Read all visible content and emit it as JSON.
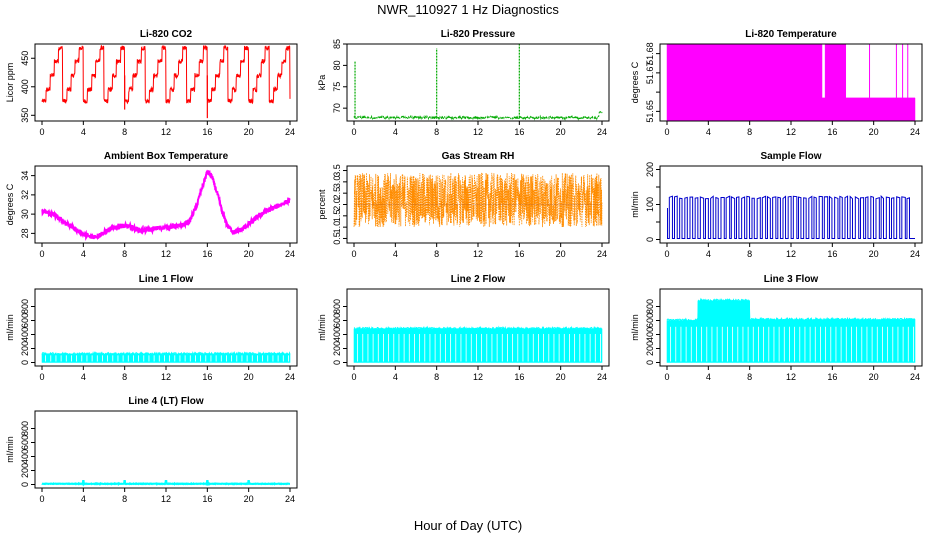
{
  "figure": {
    "title": "NWR_110927 1 Hz Diagnostics",
    "xlabel": "Hour of Day (UTC)"
  },
  "chart_data": [
    {
      "id": "co2",
      "type": "line",
      "title": "Li-820 CO2",
      "ylabel": "Licor ppm",
      "color": "#ff0000",
      "xlim": [
        0,
        24
      ],
      "xticks": [
        0,
        4,
        8,
        12,
        16,
        20,
        24
      ],
      "ylim": [
        340,
        475
      ],
      "yticks": [
        350,
        400,
        450
      ],
      "pattern": "stepped-cycle",
      "levels": [
        375,
        395,
        420,
        445,
        468
      ],
      "cycle_hours": 2,
      "spikes": [
        {
          "x": 8,
          "y": 360
        },
        {
          "x": 16,
          "y": 345
        }
      ]
    },
    {
      "id": "pressure",
      "type": "line",
      "title": "Li-820 Pressure",
      "ylabel": "kPa",
      "color": "#00aa00",
      "xlim": [
        0,
        24
      ],
      "xticks": [
        0,
        4,
        8,
        12,
        16,
        20,
        24
      ],
      "ylim": [
        67,
        85
      ],
      "yticks": [
        70,
        75,
        80,
        85
      ],
      "baseline": 67.8,
      "spikes": [
        {
          "x": 0.1,
          "y": 81
        },
        {
          "x": 8,
          "y": 84
        },
        {
          "x": 16,
          "y": 85
        }
      ],
      "end_value": 69
    },
    {
      "id": "licor-temp",
      "type": "area",
      "title": "Li-820 Temperature",
      "ylabel": "degrees C",
      "color": "#ff00ff",
      "xlim": [
        0,
        24
      ],
      "xticks": [
        0,
        4,
        8,
        12,
        16,
        20,
        24
      ],
      "ylim": [
        51.645,
        51.685
      ],
      "yticks": [
        51.65,
        51.66,
        51.67,
        51.68
      ],
      "ytick_labels": [
        "51.65",
        "",
        "51.67",
        "51.68"
      ],
      "filled_to": 51.685,
      "lowered": [
        {
          "from": 15.0,
          "to": 15.3,
          "y": 51.657
        },
        {
          "from": 17.3,
          "to": 24.0,
          "y": 51.657
        }
      ]
    },
    {
      "id": "ambient-temp",
      "type": "line",
      "title": "Ambient Box Temperature",
      "ylabel": "degrees C",
      "color": "#ff00ff",
      "xlim": [
        0,
        24
      ],
      "xticks": [
        0,
        4,
        8,
        12,
        16,
        20,
        24
      ],
      "ylim": [
        27,
        35
      ],
      "yticks": [
        28,
        30,
        32,
        34
      ],
      "x": [
        0,
        1,
        2,
        3,
        4,
        4.8,
        5.5,
        6.5,
        7.5,
        8.5,
        9.5,
        10.5,
        11.5,
        12.5,
        13.5,
        14.3,
        15,
        15.5,
        16,
        16.4,
        17,
        17.5,
        18,
        18.6,
        19.5,
        20.5,
        21.5,
        22.5,
        23.5,
        24
      ],
      "y": [
        30.3,
        30.0,
        29.3,
        28.6,
        27.9,
        27.6,
        27.8,
        28.4,
        28.8,
        28.7,
        28.3,
        28.4,
        28.6,
        28.7,
        28.8,
        29.3,
        31.0,
        32.8,
        34.4,
        34.0,
        32.0,
        30.0,
        28.7,
        28.1,
        28.5,
        29.4,
        30.2,
        30.7,
        31.2,
        31.4
      ]
    },
    {
      "id": "rh",
      "type": "scatter",
      "title": "Gas Stream RH",
      "ylabel": "percent",
      "color": "#ff8c00",
      "xlim": [
        0,
        24
      ],
      "xticks": [
        0,
        4,
        8,
        12,
        16,
        20,
        24
      ],
      "ylim": [
        0.3,
        3.7
      ],
      "yticks": [
        0.5,
        1.0,
        1.5,
        2.0,
        2.5,
        3.0,
        3.5
      ],
      "ytick_labels": [
        "0.5",
        "1.0",
        "1.5",
        "2.0",
        "2.5",
        "3.0",
        "3.5"
      ],
      "band": [
        1.0,
        3.4
      ],
      "mean": 2.0
    },
    {
      "id": "sample-flow",
      "type": "line",
      "title": "Sample Flow",
      "ylabel": "ml/min",
      "color": "#0000cc",
      "xlim": [
        0,
        24
      ],
      "xticks": [
        0,
        4,
        8,
        12,
        16,
        20,
        24
      ],
      "ylim": [
        -10,
        210
      ],
      "yticks": [
        0,
        50,
        100,
        150,
        200
      ],
      "ytick_labels": [
        "0",
        "",
        "100",
        "",
        "200"
      ],
      "low": 3,
      "high": 120,
      "pulses_per_hour": 2
    },
    {
      "id": "line1",
      "type": "area",
      "title": "Line 1 Flow",
      "ylabel": "ml/min",
      "color": "#00ffff",
      "xlim": [
        0,
        24
      ],
      "xticks": [
        0,
        4,
        8,
        12,
        16,
        20,
        24
      ],
      "ylim": [
        -50,
        1050
      ],
      "yticks": [
        0,
        200,
        400,
        600,
        800
      ],
      "level": 120
    },
    {
      "id": "line2",
      "type": "area",
      "title": "Line 2 Flow",
      "ylabel": "ml/min",
      "color": "#00ffff",
      "xlim": [
        0,
        24
      ],
      "xticks": [
        0,
        4,
        8,
        12,
        16,
        20,
        24
      ],
      "ylim": [
        -50,
        1050
      ],
      "yticks": [
        0,
        200,
        400,
        600,
        800
      ],
      "level": 480
    },
    {
      "id": "line3",
      "type": "area",
      "title": "Line 3 Flow",
      "ylabel": "ml/min",
      "color": "#00ffff",
      "xlim": [
        0,
        24
      ],
      "xticks": [
        0,
        4,
        8,
        12,
        16,
        20,
        24
      ],
      "ylim": [
        -50,
        1050
      ],
      "yticks": [
        0,
        200,
        400,
        600,
        800
      ],
      "segments": [
        {
          "from": 0,
          "to": 3,
          "y": 600
        },
        {
          "from": 3,
          "to": 8,
          "y": 880
        },
        {
          "from": 8,
          "to": 24,
          "y": 610
        }
      ]
    },
    {
      "id": "line4",
      "type": "line",
      "title": "Line 4 (LT) Flow",
      "ylabel": "ml/min",
      "color": "#00ffff",
      "xlim": [
        0,
        24
      ],
      "xticks": [
        0,
        4,
        8,
        12,
        16,
        20,
        24
      ],
      "ylim": [
        -50,
        1050
      ],
      "yticks": [
        0,
        200,
        400,
        600,
        800
      ],
      "level": 10
    }
  ]
}
